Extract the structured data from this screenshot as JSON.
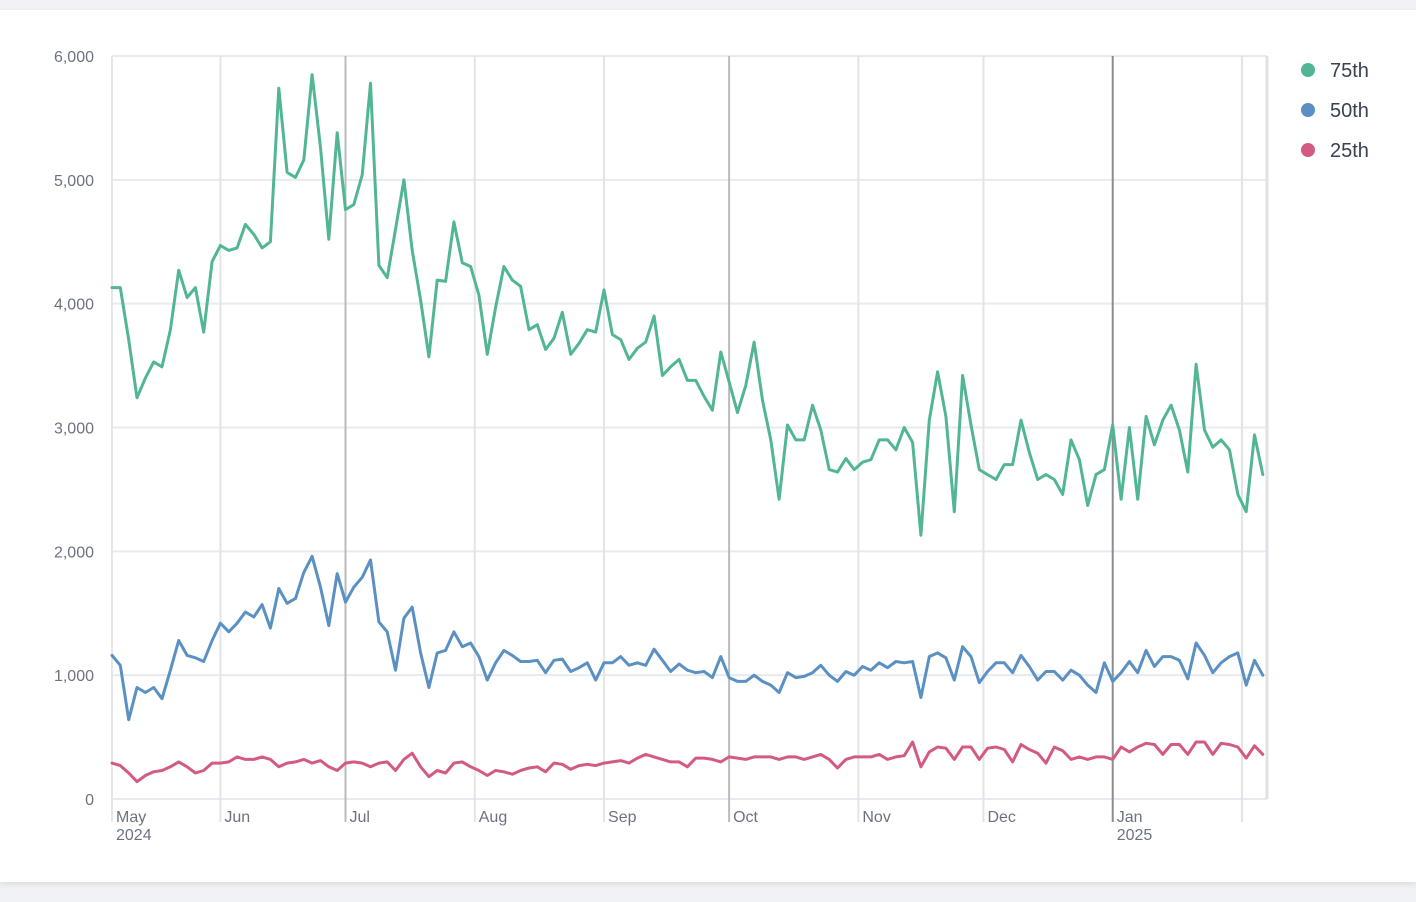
{
  "chart_data": {
    "type": "line",
    "title": "",
    "xlabel": "",
    "ylabel": "",
    "xlim": [
      "2024-05-06",
      "2025-02-07"
    ],
    "ylim": [
      0,
      6000
    ],
    "grid": true,
    "legend_position": "top-right",
    "y_ticks": [
      {
        "value": 0,
        "label": "0"
      },
      {
        "value": 1000,
        "label": "1,000"
      },
      {
        "value": 2000,
        "label": "2,000"
      },
      {
        "value": 3000,
        "label": "3,000"
      },
      {
        "value": 4000,
        "label": "4,000"
      },
      {
        "value": 5000,
        "label": "5,000"
      },
      {
        "value": 6000,
        "label": "6,000"
      }
    ],
    "x_ticks": [
      {
        "date": "2024-05-01",
        "label": "May",
        "year": "2024",
        "emphasis": false
      },
      {
        "date": "2024-06-01",
        "label": "Jun",
        "emphasis": false
      },
      {
        "date": "2024-07-01",
        "label": "Jul",
        "emphasis": true
      },
      {
        "date": "2024-08-01",
        "label": "Aug",
        "emphasis": false
      },
      {
        "date": "2024-09-01",
        "label": "Sep",
        "emphasis": false
      },
      {
        "date": "2024-10-01",
        "label": "Oct",
        "emphasis": true
      },
      {
        "date": "2024-11-01",
        "label": "Nov",
        "emphasis": false
      },
      {
        "date": "2024-12-01",
        "label": "Dec",
        "emphasis": false
      },
      {
        "date": "2025-01-01",
        "label": "Jan",
        "year": "2025",
        "emphasis": true
      },
      {
        "date": "2025-02-01",
        "label": "",
        "emphasis": false
      }
    ],
    "x": [
      "2024-05-06",
      "2024-05-08",
      "2024-05-10",
      "2024-05-12",
      "2024-05-14",
      "2024-05-16",
      "2024-05-18",
      "2024-05-20",
      "2024-05-22",
      "2024-05-24",
      "2024-05-26",
      "2024-05-28",
      "2024-05-30",
      "2024-06-01",
      "2024-06-03",
      "2024-06-05",
      "2024-06-07",
      "2024-06-09",
      "2024-06-11",
      "2024-06-13",
      "2024-06-15",
      "2024-06-17",
      "2024-06-19",
      "2024-06-21",
      "2024-06-23",
      "2024-06-25",
      "2024-06-27",
      "2024-06-29",
      "2024-07-01",
      "2024-07-03",
      "2024-07-05",
      "2024-07-07",
      "2024-07-09",
      "2024-07-11",
      "2024-07-13",
      "2024-07-15",
      "2024-07-17",
      "2024-07-19",
      "2024-07-21",
      "2024-07-23",
      "2024-07-25",
      "2024-07-27",
      "2024-07-29",
      "2024-07-31",
      "2024-08-02",
      "2024-08-04",
      "2024-08-06",
      "2024-08-08",
      "2024-08-10",
      "2024-08-12",
      "2024-08-14",
      "2024-08-16",
      "2024-08-18",
      "2024-08-20",
      "2024-08-22",
      "2024-08-24",
      "2024-08-26",
      "2024-08-28",
      "2024-08-30",
      "2024-09-01",
      "2024-09-03",
      "2024-09-05",
      "2024-09-07",
      "2024-09-09",
      "2024-09-11",
      "2024-09-13",
      "2024-09-15",
      "2024-09-17",
      "2024-09-19",
      "2024-09-21",
      "2024-09-23",
      "2024-09-25",
      "2024-09-27",
      "2024-09-29",
      "2024-10-01",
      "2024-10-03",
      "2024-10-05",
      "2024-10-07",
      "2024-10-09",
      "2024-10-11",
      "2024-10-13",
      "2024-10-15",
      "2024-10-17",
      "2024-10-19",
      "2024-10-21",
      "2024-10-23",
      "2024-10-25",
      "2024-10-27",
      "2024-10-29",
      "2024-10-31",
      "2024-11-02",
      "2024-11-04",
      "2024-11-06",
      "2024-11-08",
      "2024-11-10",
      "2024-11-12",
      "2024-11-14",
      "2024-11-16",
      "2024-11-18",
      "2024-11-20",
      "2024-11-22",
      "2024-11-24",
      "2024-11-26",
      "2024-11-28",
      "2024-11-30",
      "2024-12-02",
      "2024-12-04",
      "2024-12-06",
      "2024-12-08",
      "2024-12-10",
      "2024-12-12",
      "2024-12-14",
      "2024-12-16",
      "2024-12-18",
      "2024-12-20",
      "2024-12-22",
      "2024-12-24",
      "2024-12-26",
      "2024-12-28",
      "2024-12-30",
      "2025-01-01",
      "2025-01-03",
      "2025-01-05",
      "2025-01-07",
      "2025-01-09",
      "2025-01-11",
      "2025-01-13",
      "2025-01-15",
      "2025-01-17",
      "2025-01-19",
      "2025-01-21",
      "2025-01-23",
      "2025-01-25",
      "2025-01-27",
      "2025-01-29",
      "2025-01-31",
      "2025-02-02",
      "2025-02-04",
      "2025-02-06"
    ],
    "series": [
      {
        "name": "75th",
        "color": "#52b596",
        "values": [
          4130,
          4130,
          3710,
          3240,
          3400,
          3530,
          3490,
          3790,
          4270,
          4050,
          4130,
          3770,
          4340,
          4470,
          4430,
          4450,
          4640,
          4560,
          4450,
          4500,
          5740,
          5060,
          5020,
          5160,
          5850,
          5260,
          4520,
          5380,
          4760,
          4800,
          5040,
          5780,
          4310,
          4210,
          4600,
          5000,
          4430,
          4030,
          3570,
          4190,
          4180,
          4660,
          4330,
          4300,
          4070,
          3590,
          3970,
          4300,
          4190,
          4140,
          3790,
          3830,
          3630,
          3720,
          3930,
          3590,
          3680,
          3790,
          3770,
          4110,
          3750,
          3710,
          3550,
          3640,
          3690,
          3900,
          3420,
          3490,
          3550,
          3380,
          3380,
          3250,
          3140,
          3610,
          3370,
          3120,
          3340,
          3690,
          3220,
          2900,
          2420,
          3020,
          2900,
          2900,
          3180,
          2980,
          2660,
          2640,
          2750,
          2660,
          2720,
          2740,
          2900,
          2900,
          2820,
          3000,
          2880,
          2130,
          3060,
          3450,
          3090,
          2320,
          3420,
          3020,
          2660,
          2620,
          2580,
          2700,
          2700,
          3060,
          2800,
          2580,
          2620,
          2580,
          2460,
          2900,
          2740,
          2370,
          2620,
          2660,
          3020,
          2420,
          3000,
          2420,
          3090,
          2860,
          3060,
          3180,
          2980,
          2640,
          3510,
          2980,
          2840,
          2900,
          2820,
          2460,
          2320,
          2940,
          2620
        ]
      },
      {
        "name": "50th",
        "color": "#5b90c3",
        "values": [
          1160,
          1080,
          640,
          900,
          860,
          900,
          810,
          1040,
          1280,
          1160,
          1140,
          1110,
          1280,
          1420,
          1350,
          1420,
          1510,
          1470,
          1570,
          1380,
          1700,
          1580,
          1620,
          1830,
          1960,
          1710,
          1400,
          1820,
          1590,
          1710,
          1790,
          1930,
          1430,
          1350,
          1040,
          1460,
          1550,
          1180,
          900,
          1180,
          1200,
          1350,
          1230,
          1260,
          1150,
          960,
          1100,
          1200,
          1160,
          1110,
          1110,
          1120,
          1020,
          1120,
          1130,
          1030,
          1060,
          1100,
          960,
          1100,
          1100,
          1150,
          1080,
          1100,
          1080,
          1210,
          1120,
          1030,
          1090,
          1040,
          1020,
          1030,
          980,
          1150,
          980,
          950,
          950,
          1000,
          950,
          920,
          860,
          1020,
          980,
          990,
          1020,
          1080,
          1000,
          950,
          1030,
          1000,
          1070,
          1040,
          1100,
          1060,
          1110,
          1100,
          1110,
          820,
          1150,
          1180,
          1140,
          960,
          1230,
          1150,
          940,
          1030,
          1100,
          1100,
          1020,
          1160,
          1070,
          960,
          1030,
          1030,
          960,
          1040,
          1000,
          920,
          860,
          1100,
          950,
          1020,
          1110,
          1020,
          1200,
          1070,
          1150,
          1150,
          1120,
          970,
          1260,
          1160,
          1020,
          1100,
          1150,
          1180,
          920,
          1120,
          1000
        ]
      },
      {
        "name": "25th",
        "color": "#d35b83",
        "values": [
          290,
          270,
          210,
          140,
          190,
          220,
          230,
          260,
          300,
          260,
          210,
          230,
          290,
          290,
          300,
          340,
          320,
          320,
          340,
          320,
          260,
          290,
          300,
          320,
          290,
          310,
          260,
          230,
          290,
          300,
          290,
          260,
          290,
          300,
          230,
          320,
          370,
          260,
          180,
          230,
          210,
          290,
          300,
          260,
          230,
          190,
          230,
          220,
          200,
          230,
          250,
          260,
          220,
          290,
          280,
          240,
          270,
          280,
          270,
          290,
          300,
          310,
          290,
          330,
          360,
          340,
          320,
          300,
          300,
          260,
          330,
          330,
          320,
          300,
          340,
          330,
          320,
          340,
          340,
          340,
          320,
          340,
          340,
          320,
          340,
          360,
          320,
          250,
          320,
          340,
          340,
          340,
          360,
          320,
          340,
          350,
          460,
          260,
          380,
          420,
          410,
          320,
          420,
          420,
          320,
          410,
          420,
          400,
          300,
          440,
          400,
          370,
          290,
          420,
          390,
          320,
          340,
          320,
          340,
          340,
          320,
          420,
          380,
          420,
          450,
          440,
          360,
          440,
          440,
          360,
          460,
          460,
          360,
          450,
          440,
          420,
          330,
          430,
          360
        ]
      }
    ]
  }
}
